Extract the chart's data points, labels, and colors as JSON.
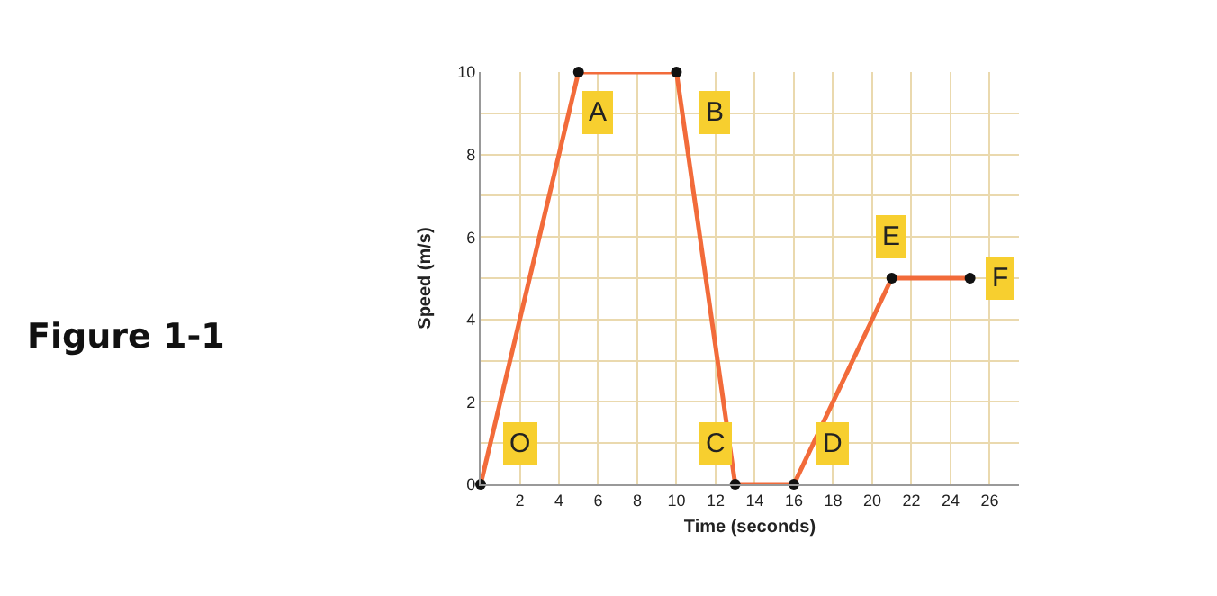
{
  "chart_data": {
    "type": "line",
    "xlabel": "Time (seconds)",
    "ylabel": "Speed (m/s)",
    "x": [
      0,
      5,
      10,
      13,
      16,
      21,
      25
    ],
    "series": [
      {
        "color": "#f26b3a",
        "values": [
          0,
          10,
          10,
          0,
          0,
          5,
          5
        ]
      }
    ],
    "xlim": [
      0,
      27.5
    ],
    "ylim": [
      0,
      10
    ],
    "xticks": [
      2,
      4,
      6,
      8,
      10,
      12,
      14,
      16,
      18,
      20,
      22,
      24,
      26
    ],
    "yticks": [
      0,
      {
        "value": 1,
        "label": null
      },
      2,
      {
        "value": 3,
        "label": null
      },
      4,
      {
        "value": 5,
        "label": null
      },
      6,
      {
        "value": 7,
        "label": null
      },
      8,
      {
        "value": 9,
        "label": null
      },
      10
    ],
    "grid": true,
    "marker": "circle",
    "line_style": "solid",
    "annotations": [
      {
        "text": "O",
        "x": 2,
        "y": 1
      },
      {
        "text": "A",
        "x": 6,
        "y": 9
      },
      {
        "text": "B",
        "x": 12,
        "y": 9
      },
      {
        "text": "C",
        "x": 12,
        "y": 1
      },
      {
        "text": "D",
        "x": 18,
        "y": 1
      },
      {
        "text": "E",
        "x": 21,
        "y": 6
      },
      {
        "text": "F",
        "x": 26.5,
        "y": 5
      },
      "Figure 1-1"
    ]
  }
}
